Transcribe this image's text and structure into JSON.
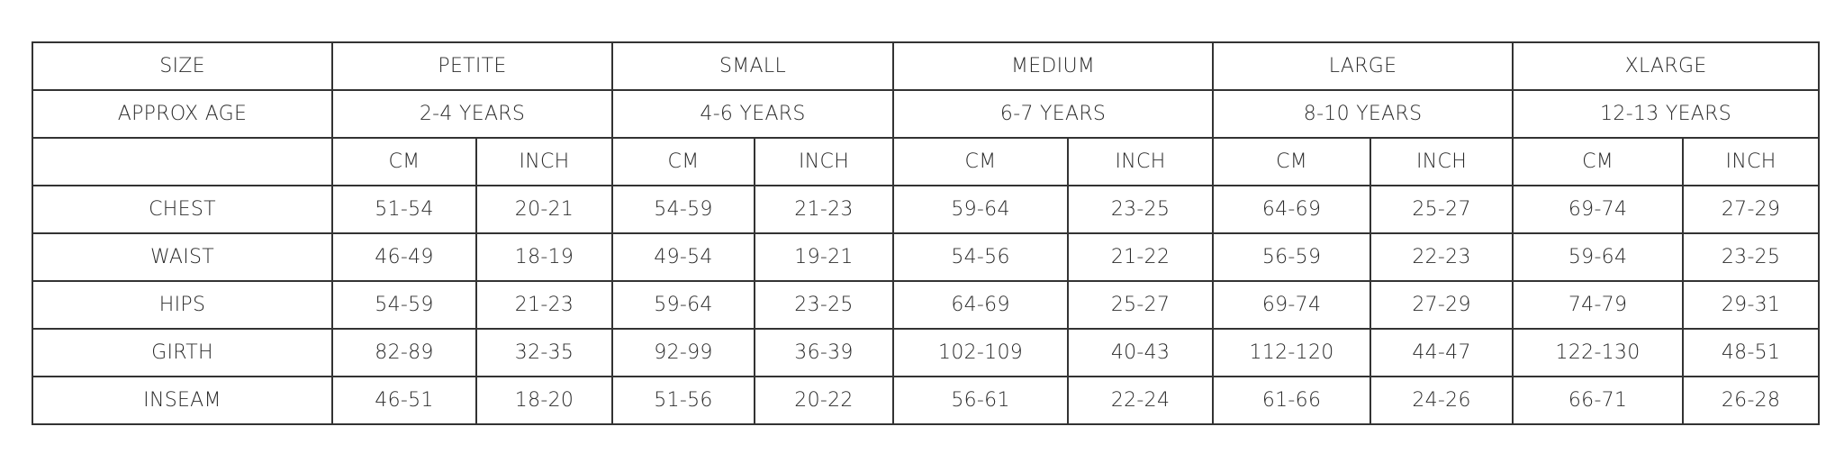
{
  "table": {
    "header": [
      "SIZE",
      "PETITE",
      "SMALL",
      "MEDIUM",
      "LARGE",
      "XLARGE"
    ],
    "age_row": [
      "APPROX AGE",
      "2-4 YEARS",
      "4-6 YEARS",
      "6-7 YEARS",
      "8-10 YEARS",
      "12-13 YEARS"
    ],
    "unit_row": [
      "CM",
      "INCH",
      "CM",
      "INCH",
      "CM",
      "INCH",
      "CM",
      "INCH",
      "CM",
      "INCH"
    ],
    "rows": [
      [
        "CHEST",
        "51-54",
        "20-21",
        "54-59",
        "21-23",
        "59-64",
        "23-25",
        "64-69",
        "25-27",
        "69-74",
        "27-29"
      ],
      [
        "WAIST",
        "46-49",
        "18-19",
        "49-54",
        "19-21",
        "54-56",
        "21-22",
        "56-59",
        "22-23",
        "59-64",
        "23-25"
      ],
      [
        "HIPS",
        "54-59",
        "21-23",
        "59-64",
        "23-25",
        "64-69",
        "25-27",
        "69-74",
        "27-29",
        "74-79",
        "29-31"
      ],
      [
        "GIRTH",
        "82-89",
        "32-35",
        "92-99",
        "36-39",
        "102-109",
        "40-43",
        "112-120",
        "44-47",
        "122-130",
        "48-51"
      ],
      [
        "INSEAM",
        "46-51",
        "18-20",
        "51-56",
        "20-22",
        "56-61",
        "22-24",
        "61-66",
        "24-26",
        "66-71",
        "26-28"
      ]
    ]
  }
}
